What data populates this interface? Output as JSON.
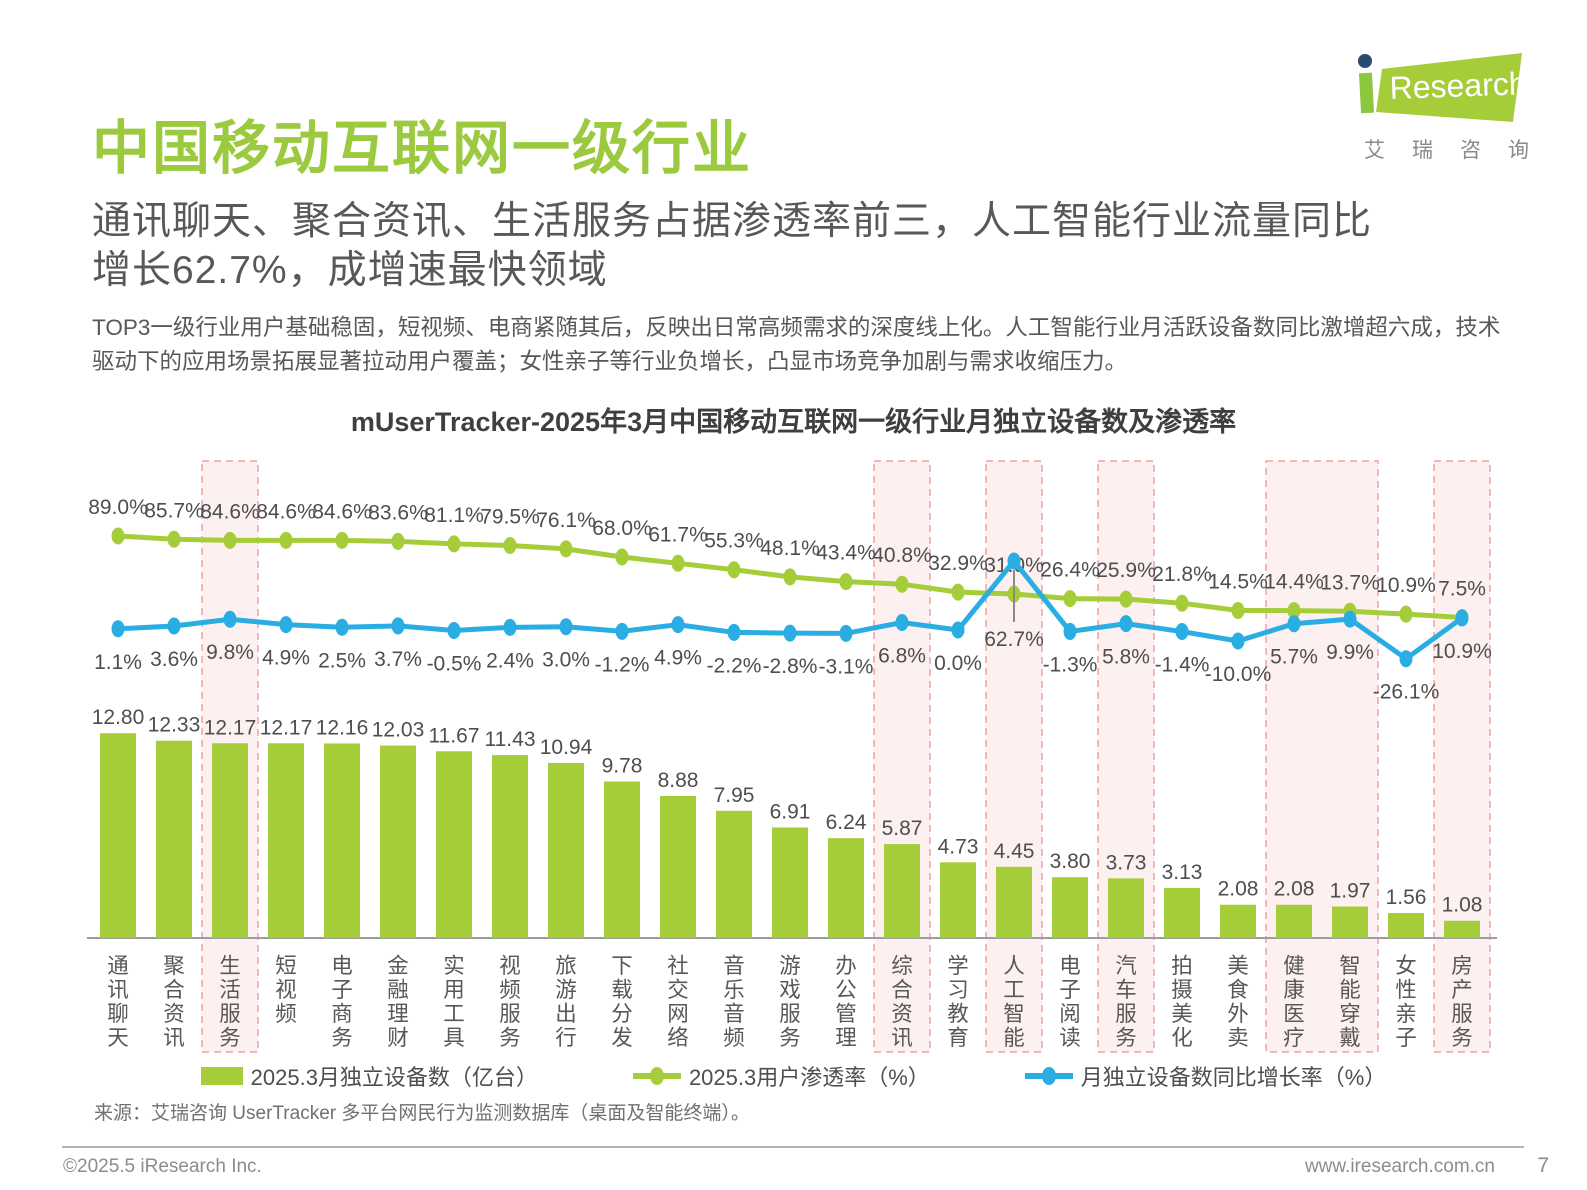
{
  "header": {
    "title": "中国移动互联网一级行业",
    "logo": {
      "text_i": "i",
      "text_research": "Research",
      "subtext": "艾瑞咨询"
    }
  },
  "subtitle": "通讯聊天、聚合资讯、生活服务占据渗透率前三，人工智能行业流量同比\n增长62.7%，成增速最快领域",
  "intro": "TOP3一级行业用户基础稳固，短视频、电商紧随其后，反映出日常高频需求的深度线上化。人工智能行业月活跃设备数同比激增超六成，技术驱动下的应用场景拓展显著拉动用户覆盖；女性亲子等行业负增长，凸显市场竞争加剧与需求收缩压力。",
  "chart_data": {
    "type": "bar+line combo",
    "title": "mUserTracker-2025年3月中国移动互联网一级行业月独立设备数及渗透率",
    "categories": [
      "通讯聊天",
      "聚合资讯",
      "生活服务",
      "短视频",
      "电子商务",
      "金融理财",
      "实用工具",
      "视频服务",
      "旅游出行",
      "下载分发",
      "社交网络",
      "音乐音频",
      "游戏服务",
      "办公管理",
      "综合资讯",
      "学习教育",
      "人工智能",
      "电子阅读",
      "汽车服务",
      "拍摄美化",
      "美食外卖",
      "健康医疗",
      "智能穿戴",
      "女性亲子",
      "房产服务"
    ],
    "series": [
      {
        "name": "2025.3月独立设备数（亿台）",
        "type": "bar",
        "color": "#a5cd39",
        "values": [
          12.8,
          12.33,
          12.17,
          12.17,
          12.16,
          12.03,
          11.67,
          11.43,
          10.94,
          9.78,
          8.88,
          7.95,
          6.91,
          6.24,
          5.87,
          4.73,
          4.45,
          3.8,
          3.73,
          3.13,
          2.08,
          2.08,
          1.97,
          1.56,
          1.08
        ]
      },
      {
        "name": "2025.3用户渗透率（%）",
        "type": "line",
        "color": "#a5cd39",
        "values": [
          89.0,
          85.7,
          84.6,
          84.6,
          84.6,
          83.6,
          81.1,
          79.5,
          76.1,
          68.0,
          61.7,
          55.3,
          48.1,
          43.4,
          40.8,
          32.9,
          31.0,
          26.4,
          25.9,
          21.8,
          14.5,
          14.4,
          13.7,
          10.9,
          7.5
        ]
      },
      {
        "name": "月独立设备数同比增长率（%）",
        "type": "line",
        "color": "#29ade3",
        "values": [
          1.1,
          3.6,
          9.8,
          4.9,
          2.5,
          3.7,
          -0.5,
          2.4,
          3.0,
          -1.2,
          4.9,
          -2.2,
          -2.8,
          -3.1,
          6.8,
          0.0,
          62.7,
          -1.3,
          5.8,
          -1.4,
          -10.0,
          5.7,
          9.9,
          -26.1,
          10.9
        ]
      }
    ],
    "highlighted_categories": [
      "生活服务",
      "综合资讯",
      "人工智能",
      "汽车服务",
      "健康医疗",
      "智能穿戴",
      "房产服务"
    ],
    "highlight_ranges": [
      [
        2,
        2
      ],
      [
        14,
        14
      ],
      [
        16,
        16
      ],
      [
        18,
        18
      ],
      [
        21,
        22
      ],
      [
        24,
        24
      ]
    ],
    "highlight_fill": "#fdf0f1",
    "highlight_border": "#f0a3a3",
    "callout_index": 16,
    "callout_value": "62.7%"
  },
  "source": "来源：艾瑞咨询 UserTracker 多平台网民行为监测数据库（桌面及智能终端）。",
  "footer": {
    "left": "©2025.5 iResearch Inc.",
    "url": "www.iresearch.com.cn",
    "page": "7"
  }
}
